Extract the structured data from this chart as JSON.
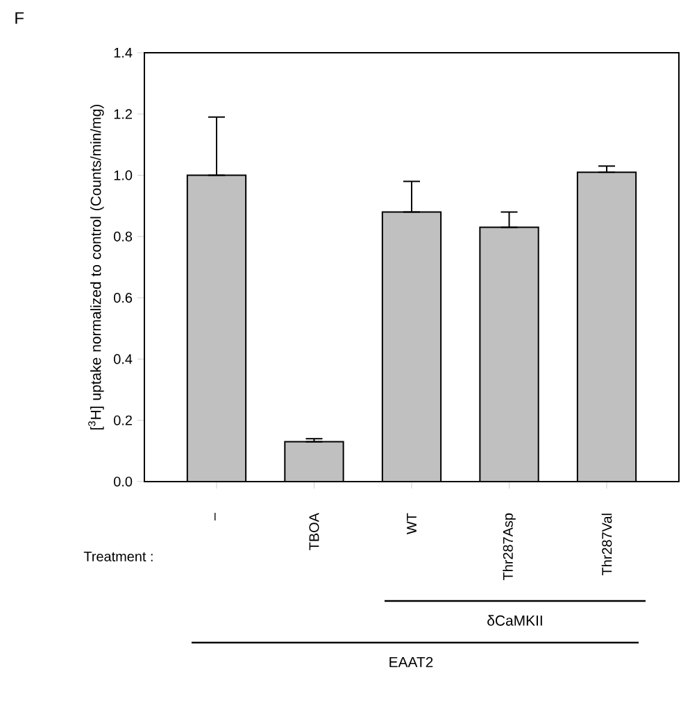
{
  "chart_data": {
    "type": "bar",
    "ylabel": "[$^{3}$H] uptake normalized to control (Counts/min/mg)",
    "categories": [
      "–",
      "TBOA",
      "WT",
      "Thr287Asp",
      "Thr287Val"
    ],
    "values": [
      1.0,
      0.13,
      0.88,
      0.83,
      1.01
    ],
    "errors": [
      [
        1.0,
        1.19
      ],
      [
        0.13,
        0.14
      ],
      [
        0.88,
        0.98
      ],
      [
        0.83,
        0.88
      ],
      [
        1.01,
        1.03
      ]
    ],
    "color": "#c0c0c0",
    "ylim": [
      0,
      1.4
    ],
    "yticks": [
      {
        "value": 0,
        "label": "0.0"
      },
      {
        "value": 0.2,
        "label": "0.2"
      },
      {
        "value": 0.4,
        "label": "0.4"
      },
      {
        "value": 0.6,
        "label": "0.6"
      },
      {
        "value": 0.8,
        "label": "0.8"
      },
      {
        "value": 1.0,
        "label": "1.0"
      },
      {
        "value": 1.2,
        "label": "1.2"
      },
      {
        "value": 1.4,
        "label": "1.4"
      }
    ],
    "annotations": [
      "F",
      "Treatment :",
      "δCaMKII",
      "EAAT2"
    ],
    "grid": false
  }
}
